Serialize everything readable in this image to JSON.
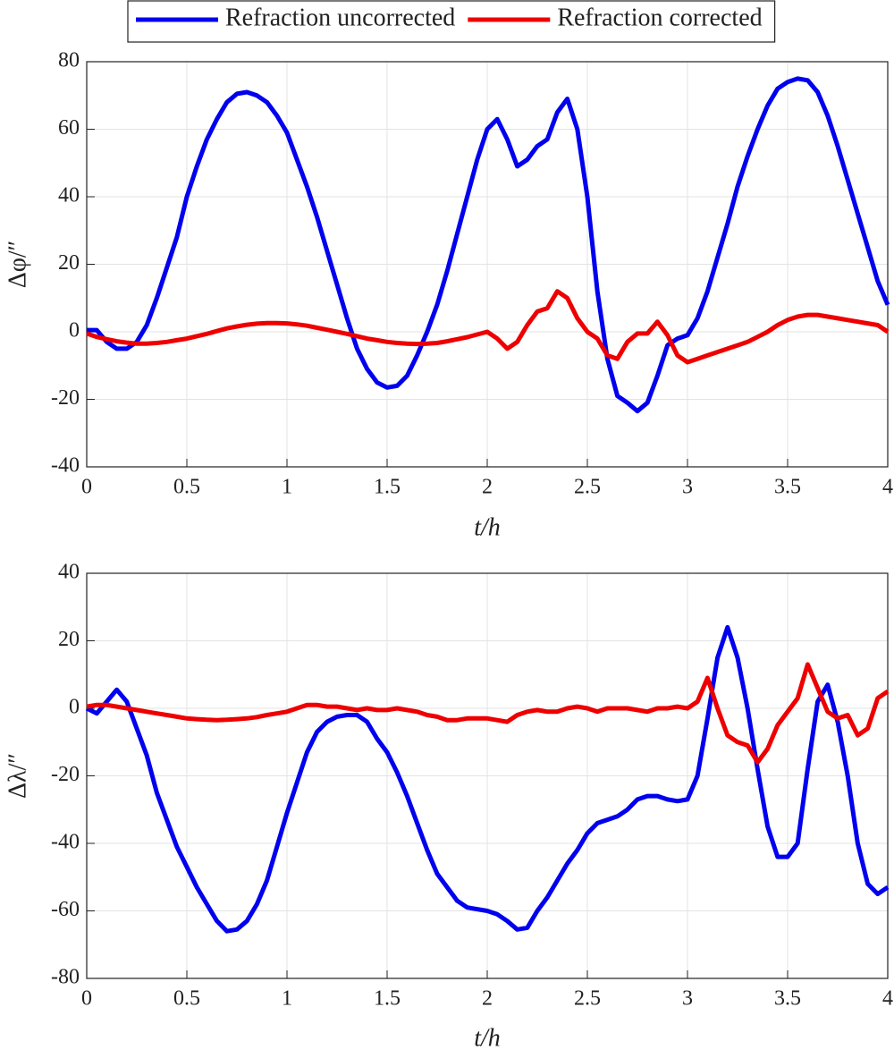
{
  "chart_data": [
    {
      "type": "line",
      "x": [
        0,
        0.05,
        0.1,
        0.15,
        0.2,
        0.25,
        0.3,
        0.35,
        0.4,
        0.45,
        0.5,
        0.55,
        0.6,
        0.65,
        0.7,
        0.75,
        0.8,
        0.85,
        0.9,
        0.95,
        1,
        1.05,
        1.1,
        1.15,
        1.2,
        1.25,
        1.3,
        1.35,
        1.4,
        1.45,
        1.5,
        1.55,
        1.6,
        1.65,
        1.7,
        1.75,
        1.8,
        1.85,
        1.9,
        1.95,
        2,
        2.05,
        2.1,
        2.15,
        2.2,
        2.25,
        2.3,
        2.35,
        2.4,
        2.45,
        2.5,
        2.55,
        2.6,
        2.65,
        2.7,
        2.75,
        2.8,
        2.85,
        2.9,
        2.95,
        3,
        3.05,
        3.1,
        3.15,
        3.2,
        3.25,
        3.3,
        3.35,
        3.4,
        3.45,
        3.5,
        3.55,
        3.6,
        3.65,
        3.7,
        3.75,
        3.8,
        3.85,
        3.9,
        3.95,
        4
      ],
      "series": [
        {
          "name": "Refraction uncorrected",
          "color": "#0000ee",
          "values": [
            0.5,
            0.5,
            -3,
            -5,
            -5,
            -3,
            2,
            10,
            19,
            28,
            40,
            49,
            57,
            63,
            68,
            70.5,
            71,
            70,
            68,
            64,
            59,
            51,
            43,
            34,
            24,
            14,
            4,
            -5,
            -11,
            -15,
            -16.5,
            -16,
            -13,
            -7,
            0,
            8,
            18,
            29,
            40,
            51,
            60,
            63,
            57,
            49,
            51,
            55,
            57,
            65,
            69,
            60,
            40,
            12,
            -8,
            -19,
            -21,
            -23.5,
            -21,
            -13,
            -4,
            -2,
            -1,
            4,
            12,
            22,
            32,
            43,
            52,
            60,
            67,
            72,
            74,
            75,
            74.5,
            71,
            64,
            55,
            45,
            35,
            25,
            15,
            8
          ]
        },
        {
          "name": "Refraction corrected",
          "color": "#ee0000",
          "values": [
            -0.5,
            -1.5,
            -2.2,
            -2.8,
            -3.2,
            -3.5,
            -3.5,
            -3.3,
            -3,
            -2.5,
            -2,
            -1.3,
            -0.6,
            0.2,
            1,
            1.6,
            2.1,
            2.4,
            2.6,
            2.6,
            2.5,
            2.2,
            1.8,
            1.2,
            0.6,
            0,
            -0.6,
            -1.3,
            -2,
            -2.5,
            -3,
            -3.3,
            -3.5,
            -3.6,
            -3.5,
            -3.3,
            -2.8,
            -2.2,
            -1.6,
            -0.8,
            0,
            -2,
            -5,
            -3,
            2,
            6,
            7,
            12,
            10,
            4,
            0,
            -2,
            -7,
            -8,
            -3,
            -0.5,
            -0.5,
            3,
            -1,
            -7,
            -9,
            -8,
            -7,
            -6,
            -5,
            -4,
            -3,
            -1.5,
            0,
            2,
            3.5,
            4.5,
            5,
            5,
            4.5,
            4,
            3.5,
            3,
            2.5,
            2,
            0
          ]
        }
      ],
      "xlim": [
        0,
        4
      ],
      "xticks": [
        0,
        0.5,
        1,
        1.5,
        2,
        2.5,
        3,
        3.5,
        4
      ],
      "ylim": [
        -40,
        80
      ],
      "yticks": [
        -40,
        -20,
        0,
        20,
        40,
        60,
        80
      ],
      "xlabel": "t/h",
      "ylabel": "Δφ/″",
      "grid": true,
      "legend": "top"
    },
    {
      "type": "line",
      "x": [
        0,
        0.05,
        0.1,
        0.15,
        0.2,
        0.25,
        0.3,
        0.35,
        0.4,
        0.45,
        0.5,
        0.55,
        0.6,
        0.65,
        0.7,
        0.75,
        0.8,
        0.85,
        0.9,
        0.95,
        1,
        1.05,
        1.1,
        1.15,
        1.2,
        1.25,
        1.3,
        1.35,
        1.4,
        1.45,
        1.5,
        1.55,
        1.6,
        1.65,
        1.7,
        1.75,
        1.8,
        1.85,
        1.9,
        1.95,
        2,
        2.05,
        2.1,
        2.15,
        2.2,
        2.25,
        2.3,
        2.35,
        2.4,
        2.45,
        2.5,
        2.55,
        2.6,
        2.65,
        2.7,
        2.75,
        2.8,
        2.85,
        2.9,
        2.95,
        3,
        3.05,
        3.1,
        3.15,
        3.2,
        3.25,
        3.3,
        3.35,
        3.4,
        3.45,
        3.5,
        3.55,
        3.6,
        3.65,
        3.7,
        3.75,
        3.8,
        3.85,
        3.9,
        3.95,
        4
      ],
      "series": [
        {
          "color": "#0000ee",
          "values": [
            0,
            -1.5,
            2,
            5.5,
            2,
            -6,
            -14,
            -25,
            -33,
            -41,
            -47,
            -53,
            -58,
            -63,
            -66,
            -65.5,
            -63,
            -58,
            -51,
            -41,
            -31,
            -22,
            -13,
            -7,
            -4,
            -2.5,
            -2,
            -2,
            -4,
            -9,
            -13,
            -19,
            -26,
            -34,
            -42,
            -49,
            -53,
            -57,
            -59,
            -59.5,
            -60,
            -61,
            -63,
            -65.5,
            -65,
            -60,
            -56,
            -51,
            -46,
            -42,
            -37,
            -34,
            -33,
            -32,
            -30,
            -27,
            -26,
            -26,
            -27,
            -27.5,
            -27,
            -20,
            -3,
            15,
            24,
            15,
            0,
            -18,
            -35,
            -44,
            -44,
            -40,
            -18,
            2,
            7,
            -4,
            -20,
            -40,
            -52,
            -55,
            -53
          ]
        },
        {
          "color": "#ee0000",
          "values": [
            0.5,
            1,
            1,
            0.5,
            0,
            -0.5,
            -1,
            -1.5,
            -2,
            -2.5,
            -3,
            -3.2,
            -3.4,
            -3.5,
            -3.4,
            -3.2,
            -3,
            -2.6,
            -2,
            -1.5,
            -1,
            0,
            1,
            1,
            0.5,
            0.5,
            0,
            -0.5,
            0,
            -0.5,
            -0.5,
            0,
            -0.5,
            -1,
            -2,
            -2.5,
            -3.5,
            -3.5,
            -3,
            -3,
            -3,
            -3.5,
            -4,
            -2,
            -1,
            -0.5,
            -1,
            -1,
            0,
            0.5,
            0,
            -1,
            0,
            0,
            0,
            -0.5,
            -1,
            0,
            0,
            0.5,
            0,
            2,
            9,
            0,
            -8,
            -10,
            -11,
            -16,
            -12,
            -5,
            -1,
            3,
            13,
            6,
            -1,
            -3,
            -2,
            -8,
            -6,
            3,
            5
          ]
        }
      ],
      "xlim": [
        0,
        4
      ],
      "xticks": [
        0,
        0.5,
        1,
        1.5,
        2,
        2.5,
        3,
        3.5,
        4
      ],
      "ylim": [
        -80,
        40
      ],
      "yticks": [
        -80,
        -60,
        -40,
        -20,
        0,
        20,
        40
      ],
      "xlabel": "t/h",
      "ylabel": "Δλ/″",
      "grid": true
    }
  ]
}
